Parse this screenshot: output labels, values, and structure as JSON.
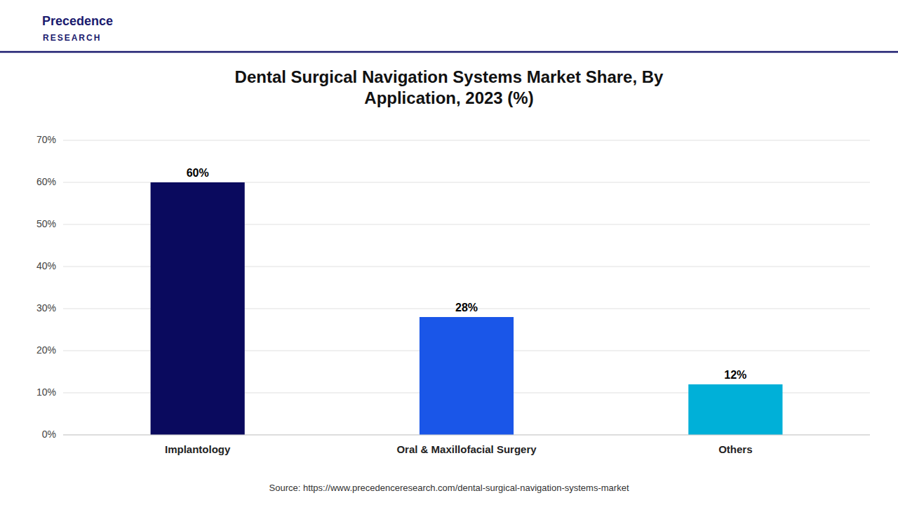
{
  "chart_data": {
    "type": "bar",
    "title": "Dental Surgical Navigation Systems Market Share, By\nApplication, 2023 (%)",
    "categories": [
      "Implantology",
      "Oral & Maxillofacial Surgery",
      "Others"
    ],
    "values": [
      60,
      28,
      12
    ],
    "value_labels": [
      "60%",
      "28%",
      "12%"
    ],
    "data_labels": true,
    "colors": [
      "#0a0a5e",
      "#1a56e8",
      "#00b0d8"
    ],
    "ylim": [
      0,
      70
    ],
    "yticks": [
      {
        "value": 0,
        "label": "0%"
      },
      {
        "value": 10,
        "label": "10%"
      },
      {
        "value": 20,
        "label": "20%"
      },
      {
        "value": 30,
        "label": "30%"
      },
      {
        "value": 40,
        "label": "40%"
      },
      {
        "value": 50,
        "label": "50%"
      },
      {
        "value": 60,
        "label": "60%"
      },
      {
        "value": 70,
        "label": "70%"
      }
    ],
    "grid": true,
    "annotations": [
      "Precedence",
      "RESEARCH",
      "Source: https://www.precedenceresearch.com/dental-surgical-navigation-systems-market"
    ]
  }
}
